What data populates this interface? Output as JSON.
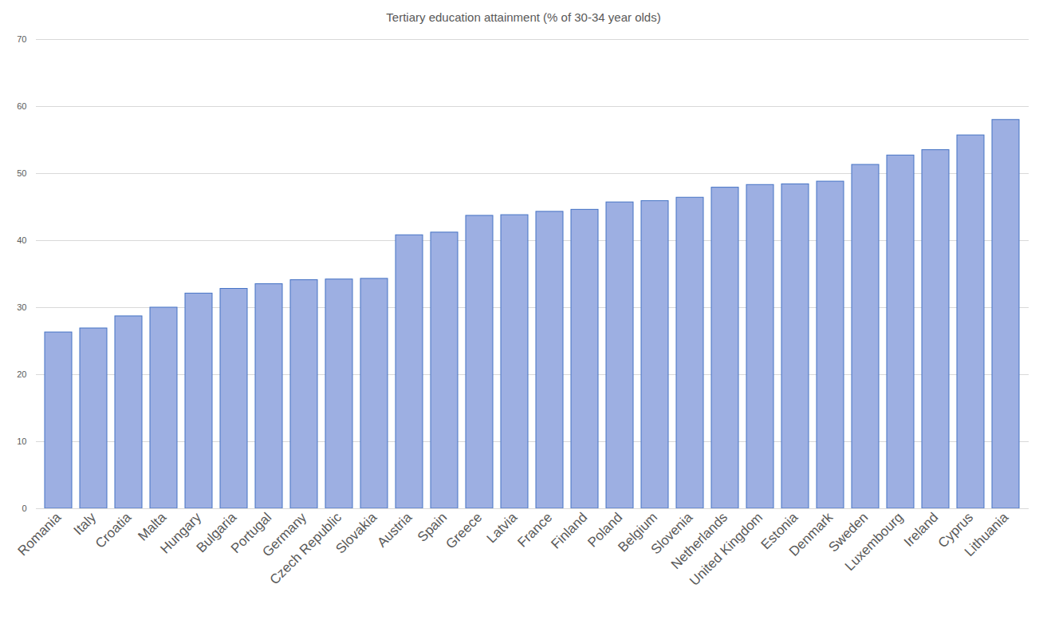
{
  "chart_data": {
    "type": "bar",
    "title": "Tertiary education attainment (% of 30-34 year olds)",
    "categories": [
      "Romania",
      "Italy",
      "Croatia",
      "Malta",
      "Hungary",
      "Bulgaria",
      "Portugal",
      "Germany",
      "Czech Republic",
      "Slovakia",
      "Austria",
      "Spain",
      "Greece",
      "Latvia",
      "France",
      "Finland",
      "Poland",
      "Belgium",
      "Slovenia",
      "Netherlands",
      "United Kingdom",
      "Estonia",
      "Denmark",
      "Sweden",
      "Luxembourg",
      "Ireland",
      "Cyprus",
      "Lithuania"
    ],
    "values": [
      26.3,
      26.9,
      28.7,
      30.0,
      32.1,
      32.8,
      33.5,
      34.1,
      34.2,
      34.3,
      40.8,
      41.2,
      43.7,
      43.8,
      44.3,
      44.6,
      45.7,
      45.9,
      46.4,
      47.9,
      48.3,
      48.4,
      48.8,
      51.3,
      52.7,
      53.5,
      55.7,
      58.0
    ],
    "color": "#9dafe2",
    "ylim": [
      0,
      70
    ],
    "yticks": [
      0,
      10,
      20,
      30,
      40,
      50,
      60,
      70
    ],
    "grid": true
  }
}
